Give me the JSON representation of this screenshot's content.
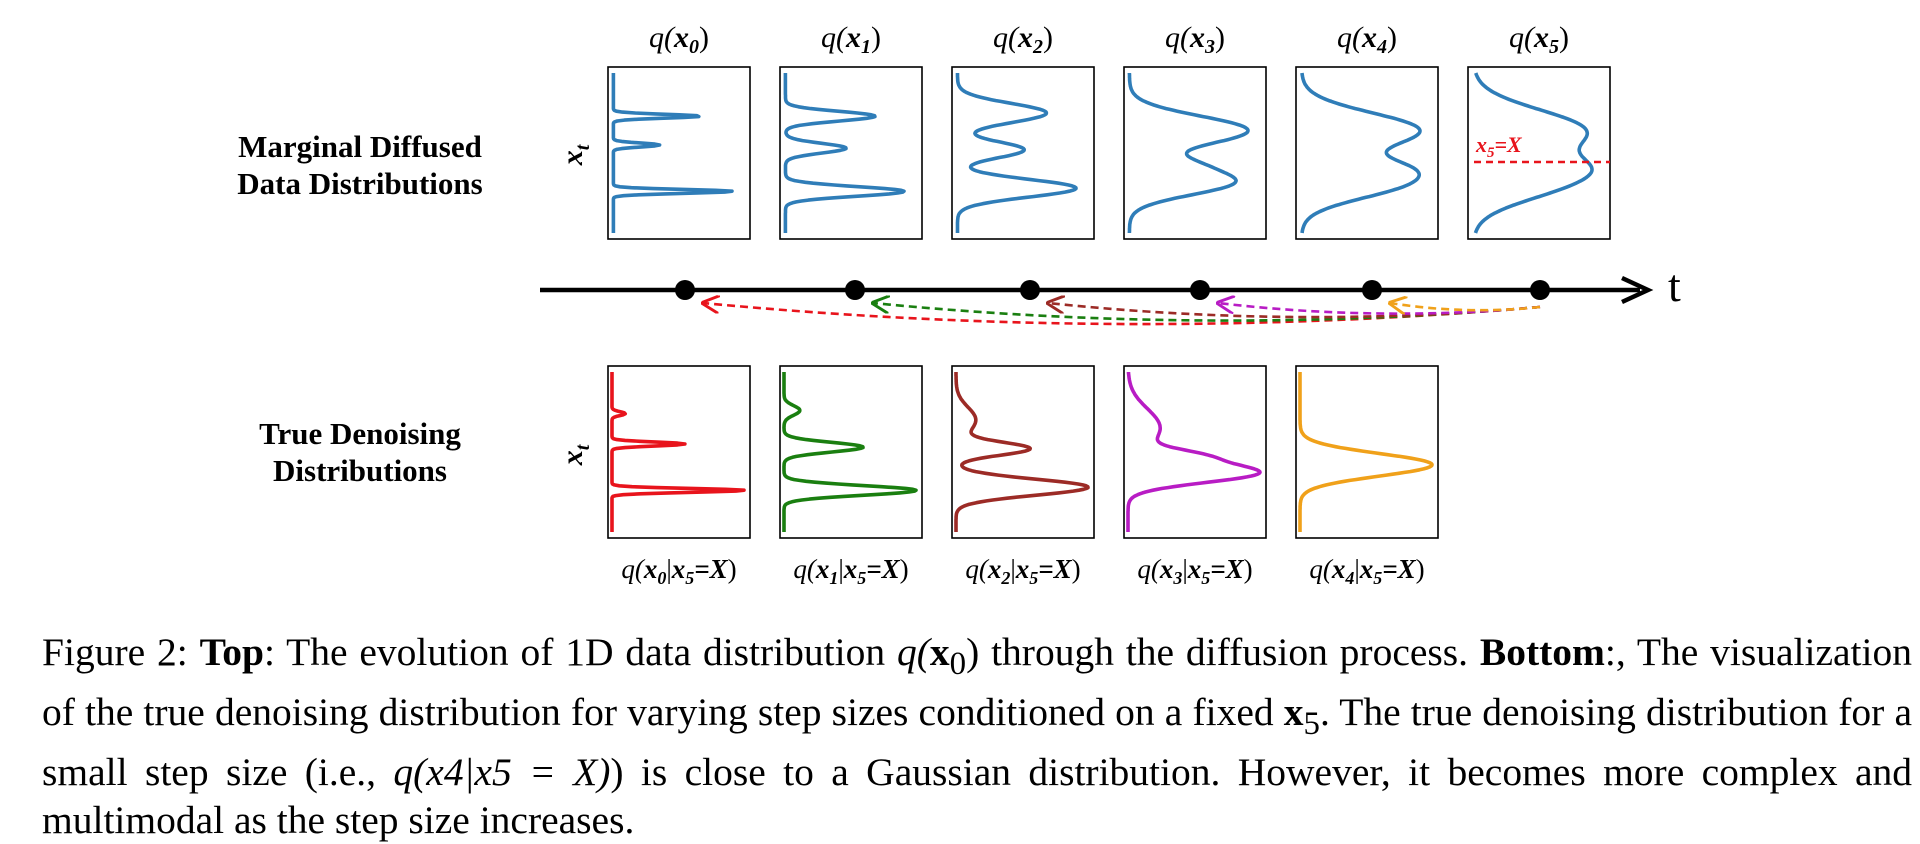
{
  "figure": {
    "row_labels": {
      "top_line1": "Marginal Diffused",
      "top_line2": "Data Distributions",
      "bottom_line1": "True Denoising",
      "bottom_line2": "Distributions"
    },
    "axis_label": "x",
    "axis_label_sub": "t",
    "timeline_label": "t",
    "marginals": [
      {
        "label": "q(x0)",
        "q": "q(",
        "x": "x",
        "sub": "0",
        "close": ")"
      },
      {
        "label": "q(x1)",
        "q": "q(",
        "x": "x",
        "sub": "1",
        "close": ")"
      },
      {
        "label": "q(x2)",
        "q": "q(",
        "x": "x",
        "sub": "2",
        "close": ")"
      },
      {
        "label": "q(x3)",
        "q": "q(",
        "x": "x",
        "sub": "3",
        "close": ")"
      },
      {
        "label": "q(x4)",
        "q": "q(",
        "x": "x",
        "sub": "4",
        "close": ")"
      },
      {
        "label": "q(x5)",
        "q": "q(",
        "x": "x",
        "sub": "5",
        "close": ")"
      }
    ],
    "threshold_label": {
      "x": "x",
      "sub": "5",
      "eq": "=X"
    },
    "denoising": [
      {
        "label": "q(x0|x5=X)",
        "sub": "0",
        "color": "#e8141c"
      },
      {
        "label": "q(x1|x5=X)",
        "sub": "1",
        "color": "#1a7f10"
      },
      {
        "label": "q(x2|x5=X)",
        "sub": "2",
        "color": "#9c2b26"
      },
      {
        "label": "q(x3|x5=X)",
        "sub": "3",
        "color": "#b81cc4"
      },
      {
        "label": "q(x4|x5=X)",
        "sub": "4",
        "color": "#f0a11a"
      }
    ],
    "colors": {
      "marginal": "#2f7db8",
      "threshold": "#e8141c",
      "axis": "#000000"
    }
  },
  "caption": {
    "prefix": "Figure 2: ",
    "top_bold": "Top",
    "part1": ": The evolution of 1D data distribution ",
    "m1_q": "q(",
    "m1_x": "x",
    "m1_sub": "0",
    "m1_close": ")",
    "part2": " through the diffusion process. ",
    "bottom_bold": "Bottom",
    "part3": ":, The visualization of the true denoising distribution for varying step sizes conditioned on a fixed ",
    "m2_x": "x",
    "m2_sub": "5",
    "part4": ". The true denoising distribution for a small step size (i.e., ",
    "m3": "q(x4|x5 = X)",
    "part5": ") is close to a Gaussian distribution. However, it becomes more complex and multimodal as the step size increases."
  }
}
